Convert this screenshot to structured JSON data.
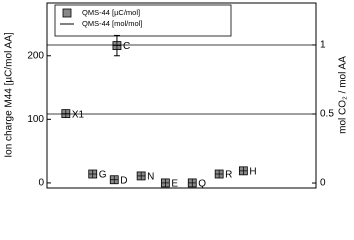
{
  "chart_data": {
    "type": "scatter",
    "ylabel": "Ion charge M44 [µC/mol AA]",
    "y2label": "mol CO₂ / mol AA",
    "xlim": [
      0,
      100
    ],
    "ylim": [
      -8,
      283
    ],
    "yticks": [
      0,
      100,
      200
    ],
    "y2lim": [
      -0.036,
      1.304
    ],
    "y2ticks": [
      0,
      0.5,
      1
    ],
    "legend": "upper left",
    "series": [
      {
        "name": "QMS-44 [µC/mol]",
        "color": "#888888",
        "x": [
          7,
          17,
          26,
          25,
          35,
          44,
          54,
          64,
          73
        ],
        "values": [
          109,
          14,
          216,
          5,
          11,
          0,
          0,
          14,
          19
        ],
        "errors": [
          null,
          null,
          16,
          null,
          null,
          null,
          null,
          null,
          null
        ],
        "labels": [
          "X1",
          "G",
          "C",
          "D",
          "N",
          "E",
          "Q",
          "R",
          "H"
        ]
      },
      {
        "name": "QMS-44 [mol/mol]",
        "color": "#000000",
        "axis": "y2",
        "type": "hline",
        "values": [
          1,
          0.5
        ]
      }
    ]
  }
}
